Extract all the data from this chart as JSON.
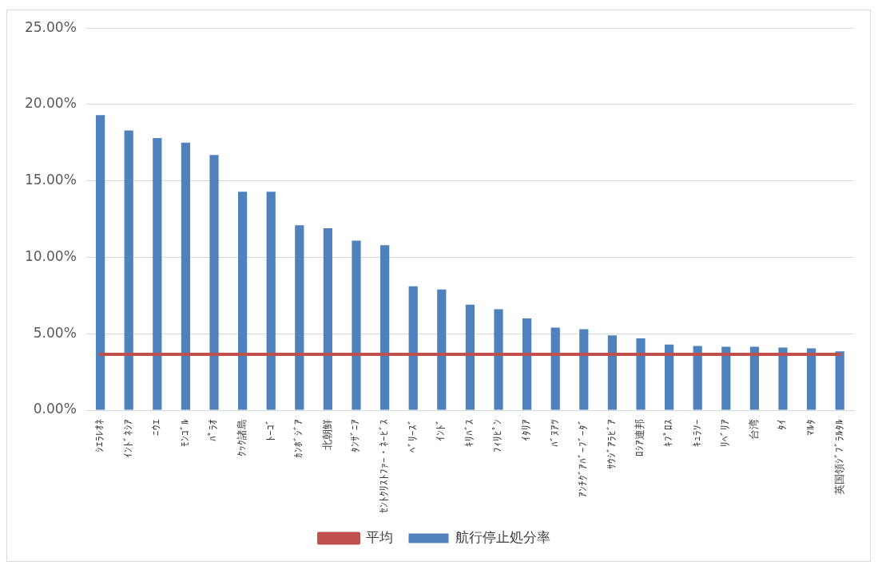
{
  "chart_data": {
    "type": "bar",
    "categories": [
      "ｼｴﾗﾚｵﾈ",
      "ｲﾝﾄﾞﾈｼｱ",
      "ﾆｳｴ",
      "ﾓﾝｺﾞﾙ",
      "ﾊﾟﾗｵ",
      "ｸｯｸ諸島",
      "ﾄｰｺﾞ",
      "ｶﾝﾎﾞｼﾞｱ",
      "北朝鮮",
      "ﾀﾝｻﾞﾆｱ",
      "ｾﾝﾄｸﾘｽﾄﾌｧｰ・ﾈｰﾋﾞｽ",
      "ﾍﾞﾘｰｽﾞ",
      "ｲﾝﾄﾞ",
      "ｷﾘﾊﾞｽ",
      "ﾌｨﾘﾋﾟﾝ",
      "ｲﾀﾘｱ",
      "ﾊﾞﾇｱﾂ",
      "ｱﾝﾁｸﾞｱﾊﾞｰﾌﾞｰﾀﾞ",
      "ｻｳｼﾞｱﾗﾋﾞｱ",
      "ﾛｼｱ連邦",
      "ｷﾌﾟﾛｽ",
      "ｷｭﾗｿｰ",
      "ﾘﾍﾞﾘｱ",
      "台湾",
      "ﾀｲ",
      "ﾏﾙﾀ",
      "英国領ｼﾞﾌﾞﾗﾙﾀﾙ"
    ],
    "series": [
      {
        "name": "航行停止処分率",
        "color": "#4f81bd",
        "values": [
          19.3,
          18.3,
          17.8,
          17.5,
          16.7,
          14.3,
          14.3,
          12.1,
          11.9,
          11.1,
          10.8,
          8.1,
          7.9,
          6.9,
          6.6,
          6.0,
          5.4,
          5.3,
          4.9,
          4.7,
          4.3,
          4.2,
          4.15,
          4.15,
          4.1,
          4.05,
          3.85
        ]
      },
      {
        "name": "平均",
        "type": "line",
        "color": "#c0504d",
        "marker": "none",
        "values": [
          3.65,
          3.65,
          3.65,
          3.65,
          3.65,
          3.65,
          3.65,
          3.65,
          3.65,
          3.65,
          3.65,
          3.65,
          3.65,
          3.65,
          3.65,
          3.65,
          3.65,
          3.65,
          3.65,
          3.65,
          3.65,
          3.65,
          3.65,
          3.65,
          3.65,
          3.65,
          3.65
        ]
      }
    ],
    "ylim": [
      0,
      25
    ],
    "yticks": [
      {
        "value": 0,
        "label": "0.00%"
      },
      {
        "value": 5,
        "label": "5.00%"
      },
      {
        "value": 10,
        "label": "10.00%"
      },
      {
        "value": 15,
        "label": "15.00%"
      },
      {
        "value": 20,
        "label": "20.00%"
      },
      {
        "value": 25,
        "label": "25.00%"
      }
    ],
    "grid": "y",
    "legend": "bottom"
  }
}
